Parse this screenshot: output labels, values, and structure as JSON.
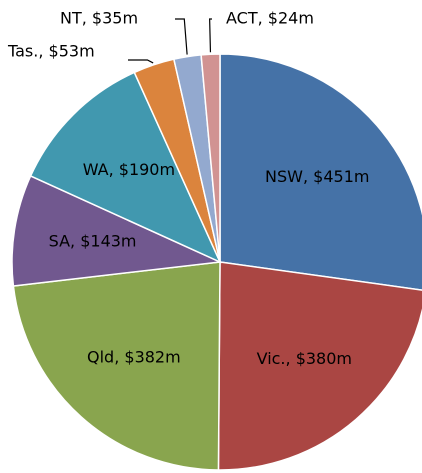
{
  "chart_data": {
    "type": "pie",
    "values": [
      451,
      380,
      382,
      143,
      190,
      53,
      35,
      24
    ],
    "value_labels": [
      "NSW, $451m",
      "Vic., $380m",
      "Qld, $382m",
      "SA, $143m",
      "WA, $190m",
      "Tas., $53m",
      "NT, $35m",
      "ACT, $24m"
    ],
    "colors": [
      "#4572a7",
      "#aa4643",
      "#89a54e",
      "#71588f",
      "#4198af",
      "#db843d",
      "#93a9cf",
      "#d19392"
    ]
  }
}
